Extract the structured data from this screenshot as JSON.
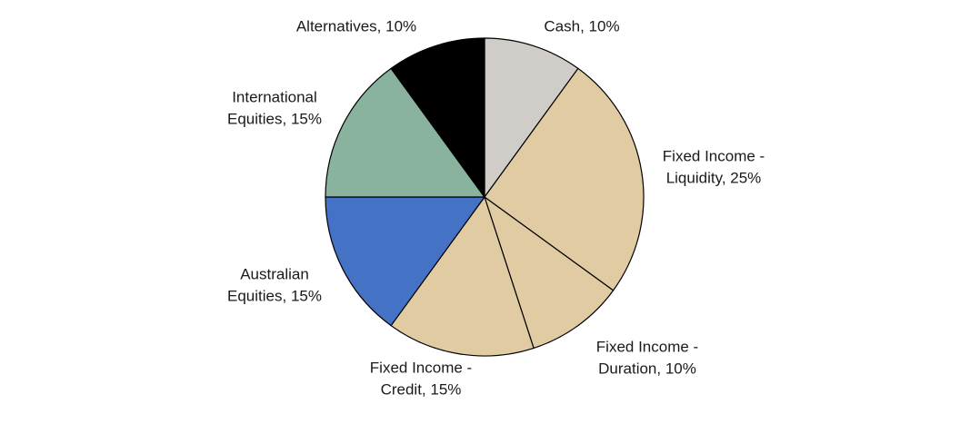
{
  "chart_data": {
    "type": "pie",
    "labels": [
      [
        "Cash, 10%"
      ],
      [
        "Fixed Income -",
        "Liquidity, 25%"
      ],
      [
        "Fixed Income -",
        "Duration, 10%"
      ],
      [
        "Fixed Income -",
        "Credit, 15%"
      ],
      [
        "Australian",
        "Equities, 15%"
      ],
      [
        "International",
        "Equities, 15%"
      ],
      [
        "Alternatives, 10%"
      ]
    ],
    "values": [
      10,
      25,
      10,
      15,
      15,
      15,
      10
    ],
    "colors": [
      "#d0ccc8",
      "#e0cba3",
      "#e0cba3",
      "#e0cba3",
      "#4472c4",
      "#8ab39f",
      "#000000"
    ]
  }
}
